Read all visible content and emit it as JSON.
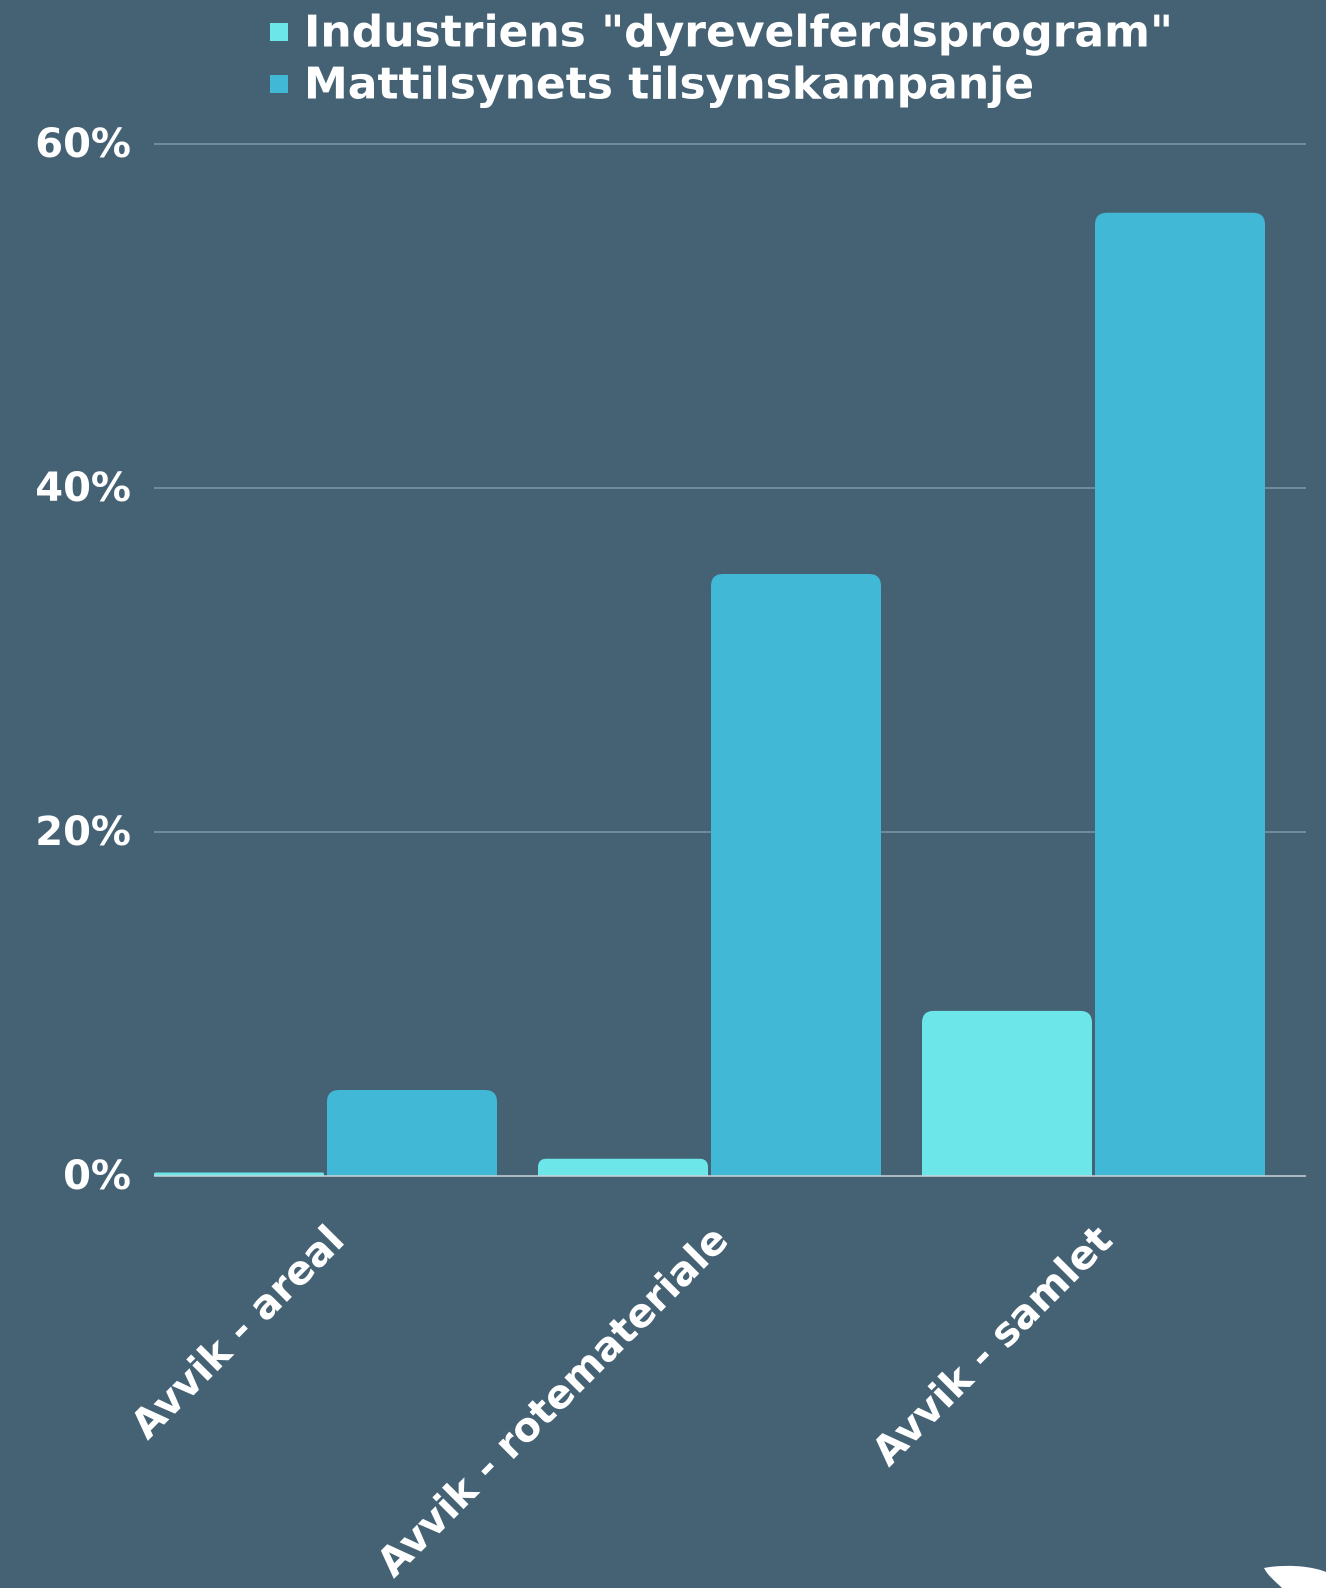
{
  "chart_data": {
    "type": "bar",
    "categories": [
      "Avvik - areal",
      "Avvik - rotemateriale",
      "Avvik - samlet"
    ],
    "series": [
      {
        "name": "Industriens \"dyrevelferdsprogram\"",
        "color": "#6ce6e8",
        "values": [
          0.2,
          1.0,
          9.6
        ]
      },
      {
        "name": "Mattilsynets tilsynskampanje",
        "color": "#41b8d6",
        "values": [
          5.0,
          35.0,
          56.0
        ]
      }
    ],
    "ylim": [
      0,
      60
    ],
    "yticks": [
      0,
      20,
      40,
      60
    ],
    "ytick_labels": [
      "0%",
      "20%",
      "40%",
      "60%"
    ],
    "ylabel": "",
    "xlabel": "",
    "title": "",
    "grid": true,
    "legend": "top-center",
    "colors": {
      "background": "#456274",
      "grid": "#7f98a6",
      "text": "#ffffff"
    }
  }
}
